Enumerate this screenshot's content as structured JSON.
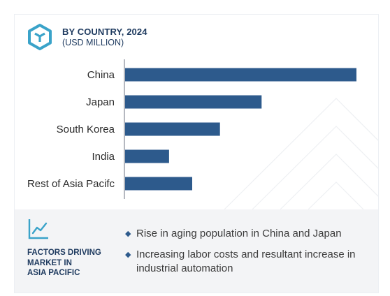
{
  "header": {
    "title": "BY COUNTRY, 2024",
    "subtitle": "(USD MILLION)",
    "logo_icon": "cube-icon"
  },
  "chart_data": {
    "type": "bar",
    "orientation": "horizontal",
    "title": "BY COUNTRY, 2024",
    "subtitle": "(USD MILLION)",
    "categories": [
      "China",
      "Japan",
      "South Korea",
      "India",
      "Rest of Asia Pacifc"
    ],
    "values": [
      100,
      59,
      41,
      19,
      29
    ],
    "bar_color": "#2d5a8c",
    "xlim": [
      0,
      100
    ],
    "grid": false,
    "value_labels": false
  },
  "factors": {
    "icon": "line-trend-icon",
    "heading_lines": [
      "FACTORS DRIVING",
      "MARKET IN",
      "ASIA PACIFIC"
    ],
    "items": [
      "Rise in aging population in China and Japan",
      "Increasing labor costs and resultant increase in industrial automation"
    ]
  },
  "colors": {
    "accent": "#1e3a5f",
    "bar": "#2d5a8c",
    "logo": "#3aa3c9",
    "panel": "#f3f4f6"
  }
}
